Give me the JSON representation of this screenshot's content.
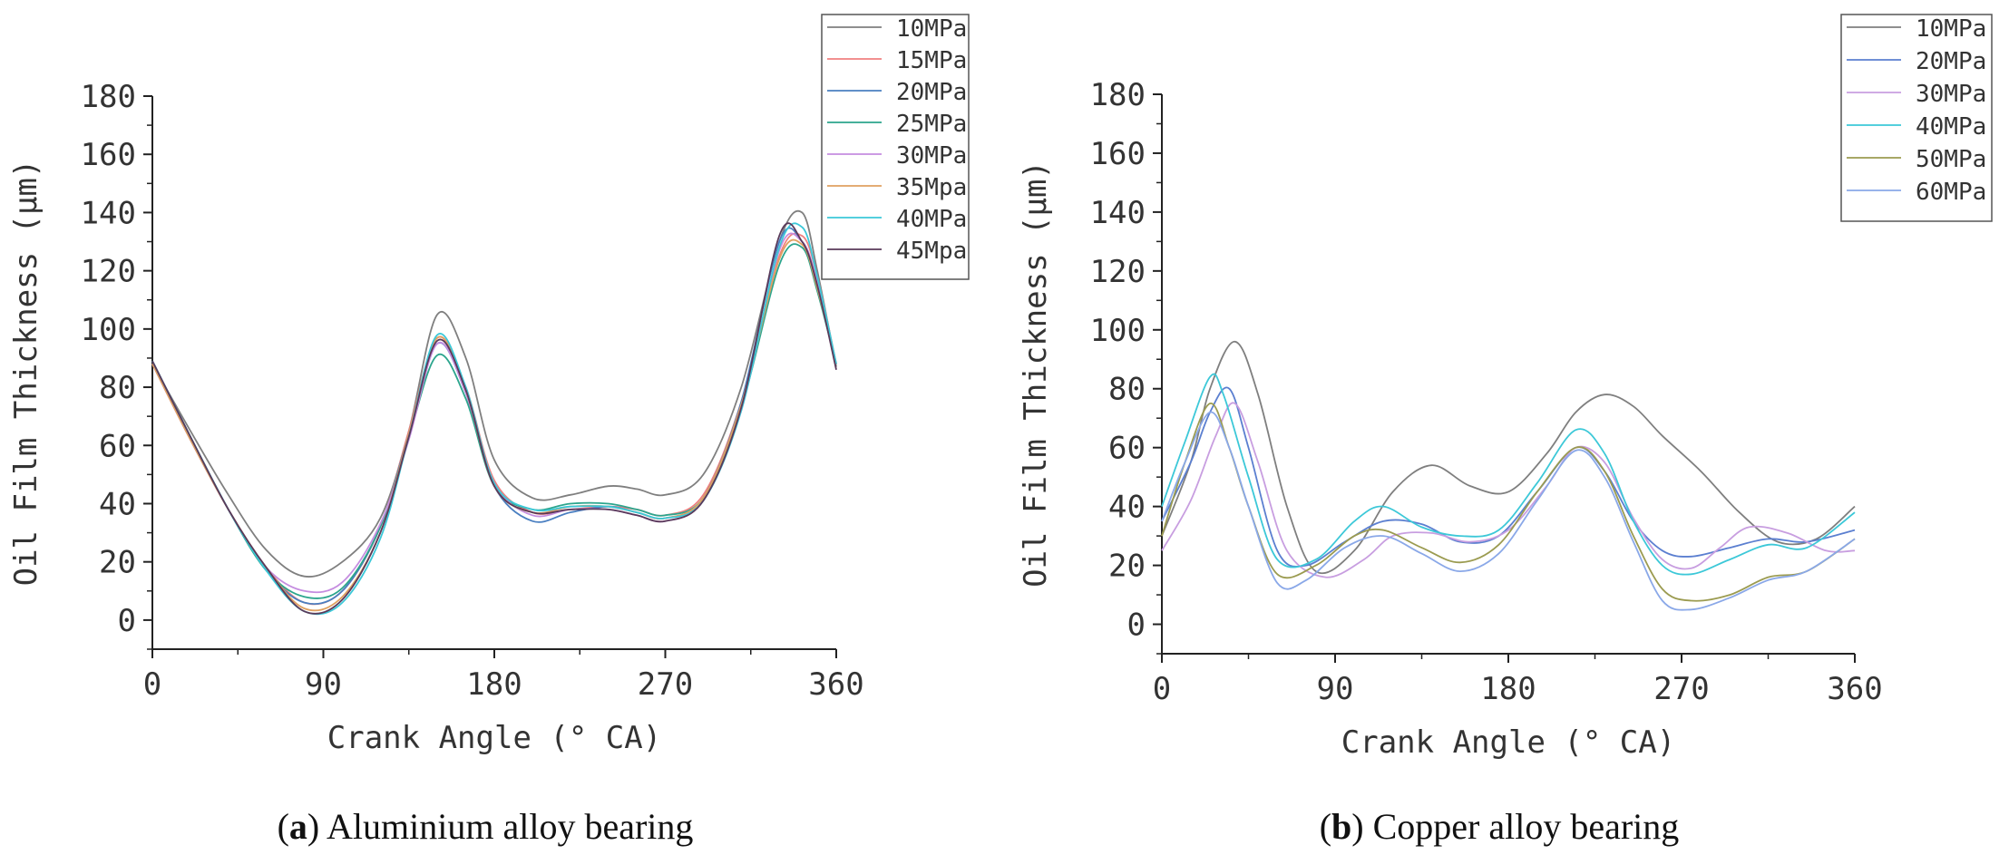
{
  "chart_data": [
    {
      "type": "line",
      "title": "",
      "caption": {
        "letter": "a",
        "text": "Aluminium alloy bearing"
      },
      "xlabel": "Crank Angle (° CA)",
      "ylabel": "Oil Film Thickness (μm)",
      "xlim": [
        0,
        360
      ],
      "ylim": [
        -10,
        180
      ],
      "xticks": [
        0,
        90,
        180,
        270,
        360
      ],
      "yticks": [
        0,
        20,
        40,
        60,
        80,
        100,
        120,
        140,
        160,
        180
      ],
      "grid": false,
      "legend_position": "top-right",
      "series": [
        {
          "name": "10MPa",
          "color": "#7f7f7f",
          "x": [
            0,
            20,
            40,
            60,
            80,
            100,
            120,
            135,
            150,
            165,
            180,
            200,
            220,
            240,
            255,
            270,
            290,
            310,
            330,
            342,
            350,
            360
          ],
          "y": [
            88,
            65,
            43,
            24,
            15,
            20,
            35,
            65,
            105,
            90,
            55,
            42,
            43,
            46,
            45,
            43,
            50,
            80,
            130,
            140,
            120,
            87
          ]
        },
        {
          "name": "15MPa",
          "color": "#f08080",
          "x": [
            0,
            20,
            40,
            60,
            80,
            100,
            120,
            135,
            150,
            165,
            180,
            200,
            220,
            240,
            255,
            270,
            290,
            310,
            330,
            342,
            350,
            360
          ],
          "y": [
            88,
            62,
            38,
            18,
            6,
            10,
            32,
            65,
            97,
            80,
            48,
            37,
            38,
            39,
            38,
            36,
            43,
            75,
            125,
            132,
            118,
            88
          ]
        },
        {
          "name": "20MPa",
          "color": "#4a7fc1",
          "x": [
            0,
            20,
            40,
            60,
            80,
            100,
            120,
            135,
            150,
            165,
            180,
            200,
            220,
            240,
            255,
            270,
            290,
            310,
            330,
            342,
            350,
            360
          ],
          "y": [
            89,
            63,
            38,
            17,
            6,
            10,
            32,
            64,
            95,
            78,
            46,
            34,
            37,
            39,
            37,
            35,
            42,
            75,
            130,
            130,
            115,
            88
          ]
        },
        {
          "name": "25MPa",
          "color": "#2ca58d",
          "x": [
            0,
            20,
            40,
            60,
            80,
            100,
            120,
            135,
            150,
            165,
            180,
            200,
            220,
            240,
            255,
            270,
            290,
            310,
            330,
            342,
            350,
            360
          ],
          "y": [
            89,
            63,
            38,
            17,
            8,
            11,
            32,
            63,
            91,
            76,
            46,
            38,
            40,
            40,
            38,
            36,
            42,
            73,
            122,
            128,
            113,
            88
          ]
        },
        {
          "name": "30MPa",
          "color": "#c58de0",
          "x": [
            0,
            20,
            40,
            60,
            80,
            100,
            120,
            135,
            150,
            165,
            180,
            200,
            220,
            240,
            255,
            270,
            290,
            310,
            330,
            342,
            350,
            360
          ],
          "y": [
            88,
            62,
            38,
            18,
            10,
            13,
            33,
            62,
            95,
            78,
            47,
            36,
            38,
            38,
            36,
            34,
            41,
            72,
            127,
            130,
            116,
            88
          ]
        },
        {
          "name": "35Mpa",
          "color": "#e0a060",
          "x": [
            0,
            20,
            40,
            60,
            80,
            100,
            120,
            135,
            150,
            165,
            180,
            200,
            220,
            240,
            255,
            270,
            290,
            310,
            330,
            342,
            350,
            360
          ],
          "y": [
            88,
            62,
            38,
            18,
            4,
            8,
            30,
            64,
            97,
            79,
            46,
            37,
            39,
            39,
            37,
            35,
            42,
            74,
            124,
            129,
            114,
            88
          ]
        },
        {
          "name": "40MPa",
          "color": "#3cc8d8",
          "x": [
            0,
            20,
            40,
            60,
            80,
            100,
            120,
            135,
            150,
            165,
            180,
            200,
            220,
            240,
            255,
            270,
            290,
            310,
            330,
            342,
            350,
            360
          ],
          "y": [
            89,
            63,
            38,
            17,
            3,
            6,
            28,
            63,
            98,
            80,
            47,
            38,
            39,
            39,
            37,
            35,
            41,
            72,
            128,
            135,
            118,
            88
          ]
        },
        {
          "name": "45Mpa",
          "color": "#5a3a5a",
          "x": [
            0,
            20,
            40,
            60,
            80,
            100,
            120,
            135,
            150,
            165,
            180,
            200,
            220,
            240,
            255,
            270,
            290,
            310,
            330,
            342,
            350,
            360
          ],
          "y": [
            89,
            63,
            38,
            18,
            3,
            7,
            30,
            63,
            96,
            79,
            46,
            37,
            38,
            38,
            36,
            34,
            41,
            73,
            132,
            130,
            115,
            86
          ]
        }
      ]
    },
    {
      "type": "line",
      "title": "",
      "caption": {
        "letter": "b",
        "text": "Copper alloy bearing"
      },
      "xlabel": "Crank Angle (° CA)",
      "ylabel": "Oil Film Thickness (μm)",
      "xlim": [
        0,
        360
      ],
      "ylim": [
        -10,
        180
      ],
      "xticks": [
        0,
        90,
        180,
        270,
        360
      ],
      "yticks": [
        0,
        20,
        40,
        60,
        80,
        100,
        120,
        140,
        160,
        180
      ],
      "grid": false,
      "legend_position": "top-right",
      "series": [
        {
          "name": "10MPa",
          "color": "#7f7f7f",
          "x": [
            0,
            15,
            25,
            38,
            50,
            65,
            80,
            100,
            120,
            140,
            160,
            180,
            200,
            215,
            230,
            245,
            260,
            280,
            300,
            320,
            340,
            360
          ],
          "y": [
            30,
            55,
            80,
            96,
            78,
            40,
            18,
            25,
            45,
            54,
            47,
            45,
            58,
            72,
            78,
            74,
            64,
            52,
            38,
            28,
            29,
            40
          ]
        },
        {
          "name": "20MPa",
          "color": "#5b7fd0",
          "x": [
            0,
            15,
            25,
            35,
            45,
            60,
            75,
            95,
            115,
            135,
            155,
            175,
            195,
            215,
            230,
            245,
            260,
            275,
            295,
            315,
            335,
            360
          ],
          "y": [
            35,
            55,
            72,
            80,
            60,
            25,
            20,
            28,
            35,
            34,
            28,
            30,
            45,
            60,
            52,
            35,
            25,
            23,
            26,
            29,
            28,
            32
          ]
        },
        {
          "name": "30MPa",
          "color": "#c89ee0",
          "x": [
            0,
            15,
            28,
            38,
            50,
            65,
            85,
            105,
            120,
            140,
            160,
            180,
            200,
            215,
            230,
            245,
            260,
            275,
            290,
            305,
            325,
            345,
            360
          ],
          "y": [
            25,
            42,
            64,
            75,
            55,
            25,
            16,
            22,
            30,
            31,
            28,
            32,
            47,
            60,
            55,
            36,
            22,
            19,
            26,
            33,
            31,
            25,
            25
          ]
        },
        {
          "name": "40MPa",
          "color": "#3cc8d8",
          "x": [
            0,
            12,
            25,
            32,
            45,
            60,
            80,
            100,
            115,
            135,
            155,
            175,
            195,
            215,
            230,
            245,
            260,
            275,
            295,
            315,
            335,
            360
          ],
          "y": [
            40,
            62,
            84,
            78,
            50,
            22,
            22,
            35,
            40,
            33,
            30,
            32,
            48,
            66,
            58,
            35,
            20,
            17,
            22,
            27,
            26,
            38
          ]
        },
        {
          "name": "50MPa",
          "color": "#9b9b50",
          "x": [
            0,
            12,
            25,
            35,
            45,
            60,
            80,
            100,
            115,
            135,
            155,
            175,
            195,
            215,
            230,
            245,
            260,
            275,
            295,
            315,
            335,
            360
          ],
          "y": [
            30,
            55,
            75,
            60,
            40,
            17,
            20,
            30,
            32,
            26,
            21,
            27,
            45,
            60,
            52,
            30,
            12,
            8,
            10,
            16,
            18,
            29
          ]
        },
        {
          "name": "60MPa",
          "color": "#8aa8e8",
          "x": [
            0,
            12,
            25,
            35,
            45,
            60,
            75,
            95,
            115,
            135,
            155,
            175,
            195,
            215,
            230,
            245,
            260,
            275,
            295,
            315,
            335,
            360
          ],
          "y": [
            35,
            55,
            72,
            60,
            40,
            14,
            15,
            26,
            30,
            24,
            18,
            24,
            42,
            59,
            50,
            28,
            8,
            5,
            9,
            15,
            18,
            29
          ]
        }
      ]
    }
  ]
}
